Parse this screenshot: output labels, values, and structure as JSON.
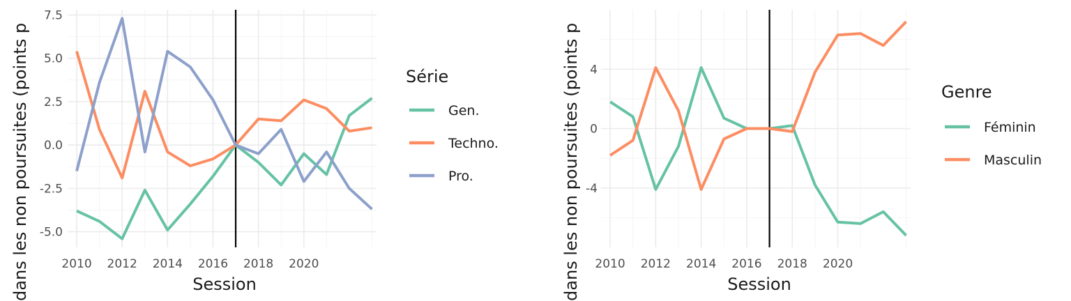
{
  "chart_data": [
    {
      "type": "line",
      "xlabel": "Session",
      "ylabel": "dans les non poursuites (points p",
      "x": [
        2010,
        2011,
        2012,
        2013,
        2014,
        2015,
        2016,
        2017,
        2018,
        2019,
        2020,
        2021,
        2022,
        2023
      ],
      "x_ticks": [
        2010,
        2012,
        2014,
        2016,
        2018,
        2020
      ],
      "x_tick_labels": [
        "2010",
        "2012",
        "2014",
        "2016",
        "2018",
        "2020"
      ],
      "xlim": [
        2009.6,
        2023.2
      ],
      "y_ticks": [
        -5.0,
        -2.5,
        0.0,
        2.5,
        5.0,
        7.5
      ],
      "y_tick_labels": [
        "-5.0",
        "-2.5",
        "0.0",
        "2.5",
        "5.0",
        "7.5"
      ],
      "ylim": [
        -5.9,
        7.8
      ],
      "vline_x": 2017,
      "grid": true,
      "legend": {
        "title": "Série",
        "position": "right"
      },
      "series": [
        {
          "name": "Gen.",
          "color": "#66c2a5",
          "values": [
            -3.8,
            -4.4,
            -5.4,
            -2.6,
            -4.9,
            -3.4,
            -1.8,
            0.0,
            -1.0,
            -2.3,
            -0.5,
            -1.7,
            1.7,
            2.7
          ]
        },
        {
          "name": "Techno.",
          "color": "#fc8d62",
          "values": [
            5.4,
            0.9,
            -1.9,
            3.1,
            -0.4,
            -1.2,
            -0.8,
            0.0,
            1.5,
            1.4,
            2.6,
            2.1,
            0.8,
            1.0
          ]
        },
        {
          "name": "Pro.",
          "color": "#8da0cb",
          "values": [
            -1.5,
            3.6,
            7.3,
            -0.4,
            5.4,
            4.5,
            2.6,
            0.0,
            -0.5,
            0.9,
            -2.1,
            -0.4,
            -2.5,
            -3.7
          ]
        }
      ]
    },
    {
      "type": "line",
      "xlabel": "Session",
      "ylabel": "dans les non poursuites (points p",
      "x": [
        2010,
        2011,
        2012,
        2013,
        2014,
        2015,
        2016,
        2017,
        2018,
        2019,
        2020,
        2021,
        2022,
        2023
      ],
      "x_ticks": [
        2010,
        2012,
        2014,
        2016,
        2018,
        2020
      ],
      "x_tick_labels": [
        "2010",
        "2012",
        "2014",
        "2016",
        "2018",
        "2020"
      ],
      "xlim": [
        2009.6,
        2023.2
      ],
      "y_ticks": [
        -4,
        0,
        4
      ],
      "y_tick_labels": [
        "-4",
        "0",
        "4"
      ],
      "y_minor_ticks": [
        -6,
        -2,
        2,
        6
      ],
      "ylim": [
        -8.0,
        8.0
      ],
      "vline_x": 2017,
      "grid": true,
      "legend": {
        "title": "Genre",
        "position": "right"
      },
      "series": [
        {
          "name": "Féminin",
          "color": "#66c2a5",
          "values": [
            1.8,
            0.8,
            -4.1,
            -1.2,
            4.1,
            0.7,
            0.0,
            0.0,
            0.2,
            -3.8,
            -6.3,
            -6.4,
            -5.6,
            -7.2
          ]
        },
        {
          "name": "Masculin",
          "color": "#fc8d62",
          "values": [
            -1.8,
            -0.8,
            4.1,
            1.2,
            -4.1,
            -0.7,
            0.0,
            0.0,
            -0.2,
            3.8,
            6.3,
            6.4,
            5.6,
            7.2
          ]
        }
      ]
    }
  ]
}
